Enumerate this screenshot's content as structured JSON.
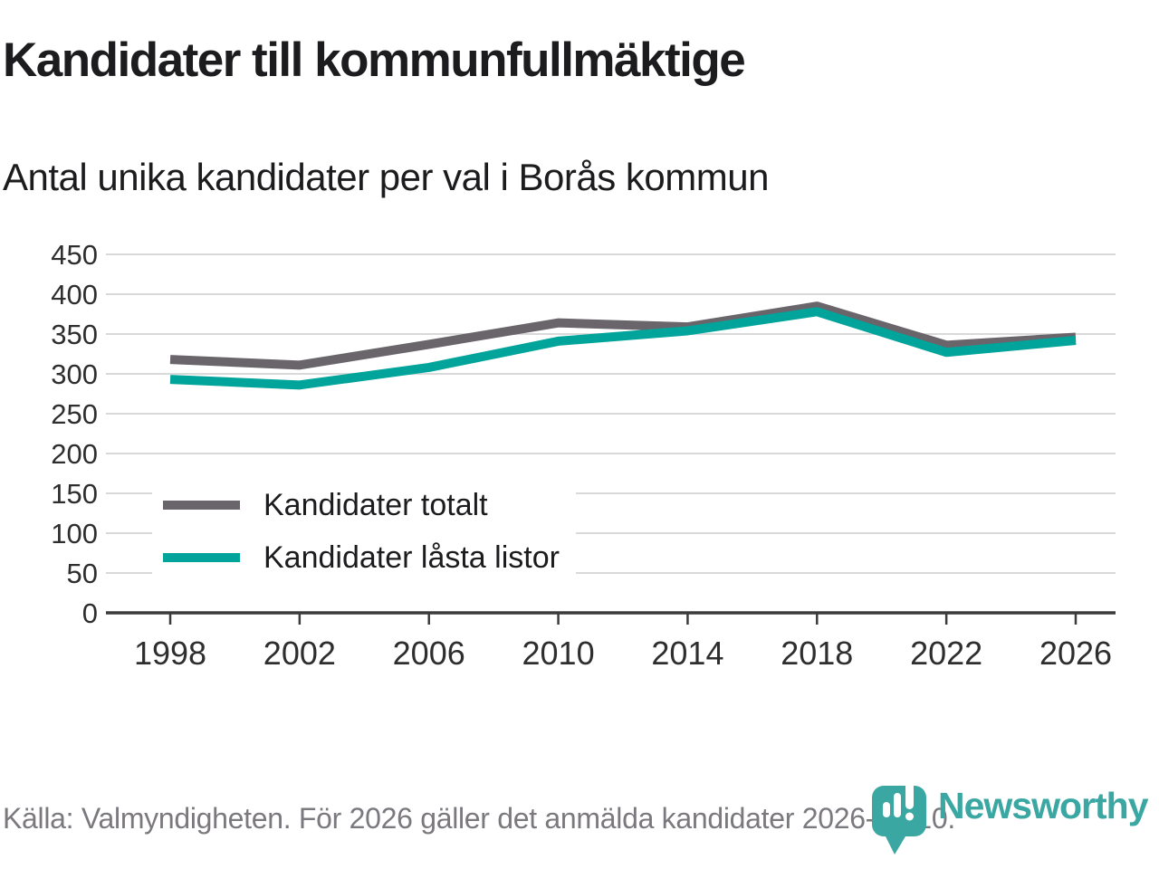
{
  "header": {
    "title": "Kandidater till kommunfullmäktige",
    "subtitle": "Antal unika kandidater per val i Borås kommun"
  },
  "chart_data": {
    "type": "line",
    "x": [
      1998,
      2002,
      2006,
      2010,
      2014,
      2018,
      2022,
      2026
    ],
    "series": [
      {
        "name": "Kandidater totalt",
        "color": "#69656b",
        "values": [
          318,
          311,
          337,
          364,
          359,
          385,
          336,
          346
        ]
      },
      {
        "name": "Kandidater låsta listor",
        "color": "#00a49b",
        "values": [
          293,
          286,
          308,
          341,
          354,
          378,
          327,
          342
        ]
      }
    ],
    "title": "Kandidater till kommunfullmäktige",
    "xlabel": "",
    "ylabel": "",
    "ylim": [
      0,
      450
    ],
    "yticks": [
      0,
      50,
      100,
      150,
      200,
      250,
      300,
      350,
      400,
      450
    ],
    "grid": true,
    "legend_position": "inside-left-middle",
    "gridline_color": "#d9d9d9",
    "axis_color": "#3b3b3b",
    "tick_label_color": "#2e2e2e"
  },
  "footer": {
    "source": "Källa: Valmyndigheten. För 2026 gäller det anmälda kandidater 2026-04-10."
  },
  "branding": {
    "logo_text": "Newsworthy",
    "logo_color": "#3ba7a2",
    "logo_icon": "newsworthy-pin-barchart-icon"
  }
}
